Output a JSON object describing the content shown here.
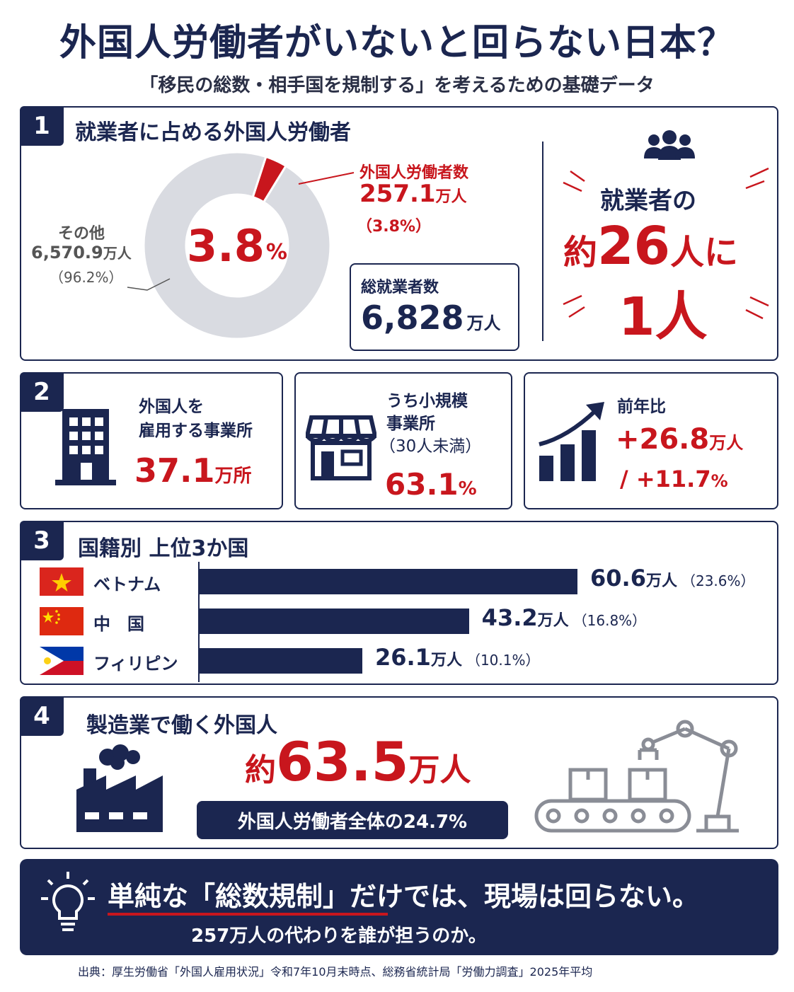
{
  "title": "外国人労働者がいないと回らない日本？",
  "subtitle": "「移民の総数・相手国を規制する」を考えるための基礎データ",
  "colors": {
    "navy": "#1b2650",
    "red": "#c8161d",
    "gray": "#d9dbe1"
  },
  "section1": {
    "number": "1",
    "title": "就業者に占める外国人労働者",
    "foreign": {
      "label": "外国人労働者数",
      "value": "257.1",
      "unit": "万人",
      "share": "（3.8%）"
    },
    "other": {
      "label": "その他",
      "value": "6,570.9",
      "unit": "万人",
      "share": "（96.2%）"
    },
    "center_value": "3.8",
    "center_unit": "%",
    "total": {
      "label": "総就業者数",
      "value": "6,828",
      "unit": "万人"
    },
    "ratio": {
      "line1": "就業者の",
      "prefix": "約",
      "number": "26",
      "suffix": "人に",
      "line3": "1人",
      "icon": "people-group-icon"
    }
  },
  "section2": {
    "number": "2",
    "card1": {
      "line1": "外国人を",
      "line2": "雇用する事業所",
      "value": "37.1",
      "unit": "万所",
      "icon": "building-icon"
    },
    "card2": {
      "line1": "うち小規模",
      "line2": "事業所",
      "line3": "（30人未満）",
      "value": "63.1",
      "unit": "%",
      "icon": "storefront-icon"
    },
    "card3": {
      "label": "前年比",
      "value1": "+26.8",
      "unit1": "万人",
      "value2": "/ +11.7",
      "unit2": "%",
      "icon": "growth-chart-icon"
    }
  },
  "section3": {
    "number": "3",
    "title": "国籍別 上位3か国",
    "countries": [
      {
        "name": "ベトナム",
        "value": "60.6",
        "unit": "万人",
        "share": "（23.6%）",
        "flag": "vietnam-flag-icon"
      },
      {
        "name": "中　国",
        "value": "43.2",
        "unit": "万人",
        "share": "（16.8%）",
        "flag": "china-flag-icon"
      },
      {
        "name": "フィリピン",
        "value": "26.1",
        "unit": "万人",
        "share": "（10.1%）",
        "flag": "philippines-flag-icon"
      }
    ]
  },
  "section4": {
    "number": "4",
    "title": "製造業で働く外国人",
    "prefix": "約",
    "value": "63.5",
    "unit": "万人",
    "pill": "外国人労働者全体の24.7%",
    "icons": [
      "factory-icon",
      "robot-arm-icon"
    ]
  },
  "conclusion": {
    "main": "単純な「総数規制」だけでは、現場は回らない。",
    "sub": "257万人の代わりを誰が担うのか。",
    "icon": "lightbulb-icon"
  },
  "source": "出典：厚生労働省「外国人雇用状況」令和7年10月末時点、総務省統計局「労働力調査」2025年平均",
  "chart_data": [
    {
      "type": "pie",
      "labels": [
        "外国人労働者数",
        "その他"
      ],
      "values": [
        257.1,
        6570.9
      ]
    },
    {
      "type": "bar",
      "categories": [
        "ベトナム",
        "中　国",
        "フィリピン"
      ],
      "values": [
        60.6,
        43.2,
        26.1
      ]
    }
  ]
}
